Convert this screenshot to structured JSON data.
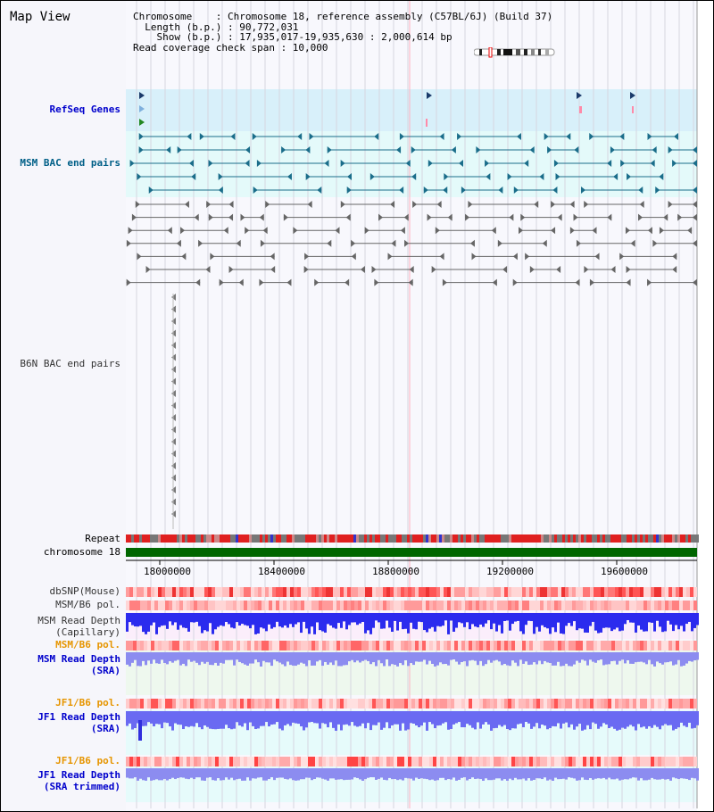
{
  "page_title": "Map View",
  "info": {
    "chromosome_key": "Chromosome",
    "chromosome_val": ": Chromosome 18, reference assembly (C57BL/6J) (Build 37)",
    "length_key": "Length (b.p.)",
    "length_val": ": 90,772,031",
    "show_key": "Show (b.p.)",
    "show_val": ": 17,935,017-19,935,630 : 2,000,614 bp",
    "coverage_text": "Read coverage check span : 10,000"
  },
  "tracks": {
    "refseq": "RefSeq Genes",
    "msm_bac": "MSM BAC end pairs",
    "b6n_bac": "B6N BAC end pairs",
    "repeat": "Repeat",
    "chromosome": "chromosome 18",
    "dbsnp": "dbSNP(Mouse)",
    "msm_b6_pol_1": "MSM/B6 pol.",
    "msm_depth_cap_1": "MSM Read Depth",
    "msm_depth_cap_2": "(Capillary)",
    "msm_b6_pol_2": "MSM/B6 pol.",
    "msm_depth_sra_1": "MSM Read Depth",
    "msm_depth_sra_2": "(SRA)",
    "jf1_b6_pol_1": "JF1/B6 pol.",
    "jf1_depth_sra_1": "JF1 Read Depth",
    "jf1_depth_sra_2": "(SRA)",
    "jf1_b6_pol_2": "JF1/B6 pol.",
    "jf1_depth_trim_1": "JF1 Read Depth",
    "jf1_depth_trim_2": "(SRA trimmed)"
  },
  "axis_ticks": [
    "18000000",
    "18400000",
    "18800000",
    "19200000",
    "19600000"
  ],
  "colors": {
    "refseq_label": "#0000cc",
    "msm_label": "#005f87",
    "b6n_label": "#333333",
    "depth_label": "#0000cc",
    "pol_label": "#e69500",
    "refseq_bg": "#d8f0fa",
    "msm_bg": "#e4fafa",
    "chromosome_bar": "#006600"
  }
}
